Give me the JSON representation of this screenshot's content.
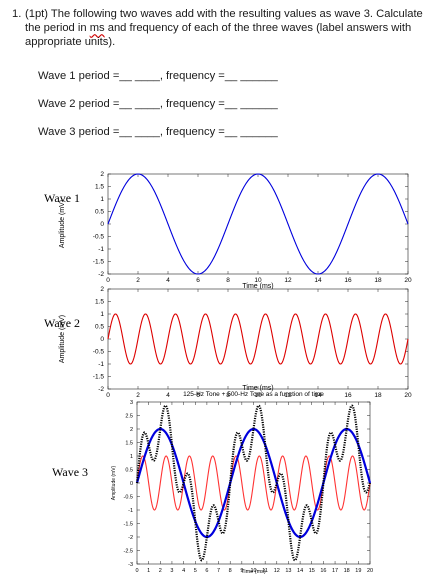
{
  "question": {
    "number": "1.",
    "text_before": "(1pt) The following two waves add with the resulting values as wave 3. Calculate the period in ",
    "ms": "ms",
    "text_after": " and frequency of each of the three waves (label answers with appropriate units)."
  },
  "answer_rows": [
    {
      "period_label": "Wave 1 period = ",
      "blank1": "__ ____",
      "frequency_label": ", frequency = ",
      "blank2": "__ ______"
    },
    {
      "period_label": "Wave 2 period = ",
      "blank1": "__ ____",
      "frequency_label": ", frequency = ",
      "blank2": "__ ______"
    },
    {
      "period_label": "Wave 3 period = ",
      "blank1": "__ ____",
      "frequency_label": ", frequency = ",
      "blank2": "__ ______"
    }
  ],
  "chart_data": [
    {
      "type": "line",
      "side_label": "Wave 1",
      "xlabel": "Time (ms)",
      "ylabel": "Amplitude (mV)",
      "xlim": [
        0,
        20
      ],
      "ylim": [
        -2,
        2
      ],
      "xticks": [
        "0",
        "2",
        "4",
        "6",
        "8",
        "10",
        "12",
        "14",
        "16",
        "18",
        "20"
      ],
      "yticks": [
        "2",
        "1.5",
        "1",
        "0.5",
        "0",
        "-0.5",
        "-1",
        "-1.5",
        "-2"
      ],
      "series": [
        {
          "amplitude": 2,
          "frequency_hz": 125,
          "color": "#0000dd"
        }
      ]
    },
    {
      "type": "line",
      "side_label": "Wave 2",
      "xlabel": "Time (ms)",
      "ylabel": "Amplitude (mV)",
      "xlim": [
        0,
        20
      ],
      "ylim": [
        -2,
        2
      ],
      "xticks": [
        "0",
        "2",
        "4",
        "6",
        "8",
        "10",
        "12",
        "14",
        "16",
        "18",
        "20"
      ],
      "yticks": [
        "2",
        "1.5",
        "1",
        "0.5",
        "0",
        "-0.5",
        "-1",
        "-1.5",
        "-2"
      ],
      "series": [
        {
          "amplitude": 1,
          "frequency_hz": 500,
          "color": "#dd0000"
        }
      ]
    },
    {
      "type": "line",
      "side_label": "Wave 3",
      "title": "125-Hz Tone + 500-Hz Tone as a function of time",
      "xlabel": "Time (ms)",
      "ylabel": "Amplitude (mV)",
      "xlim": [
        0,
        20
      ],
      "ylim": [
        -3,
        3
      ],
      "xticks": [
        "0",
        "1",
        "2",
        "3",
        "4",
        "5",
        "6",
        "7",
        "8",
        "9",
        "10",
        "11",
        "12",
        "13",
        "14",
        "15",
        "16",
        "17",
        "18",
        "19",
        "20"
      ],
      "yticks": [
        "3",
        "2.5",
        "2",
        "1.5",
        "1",
        "0.5",
        "0",
        "-0.5",
        "-1",
        "-1.5",
        "-2",
        "-2.5",
        "-3"
      ],
      "series": [
        {
          "amplitude": 2,
          "frequency_hz": 125,
          "color": "#0000dd"
        },
        {
          "amplitude": 1,
          "frequency_hz": 500,
          "color": "#ff3333"
        },
        {
          "sum_of_first_two": true,
          "color": "#000000",
          "style": "dotted"
        }
      ]
    }
  ]
}
